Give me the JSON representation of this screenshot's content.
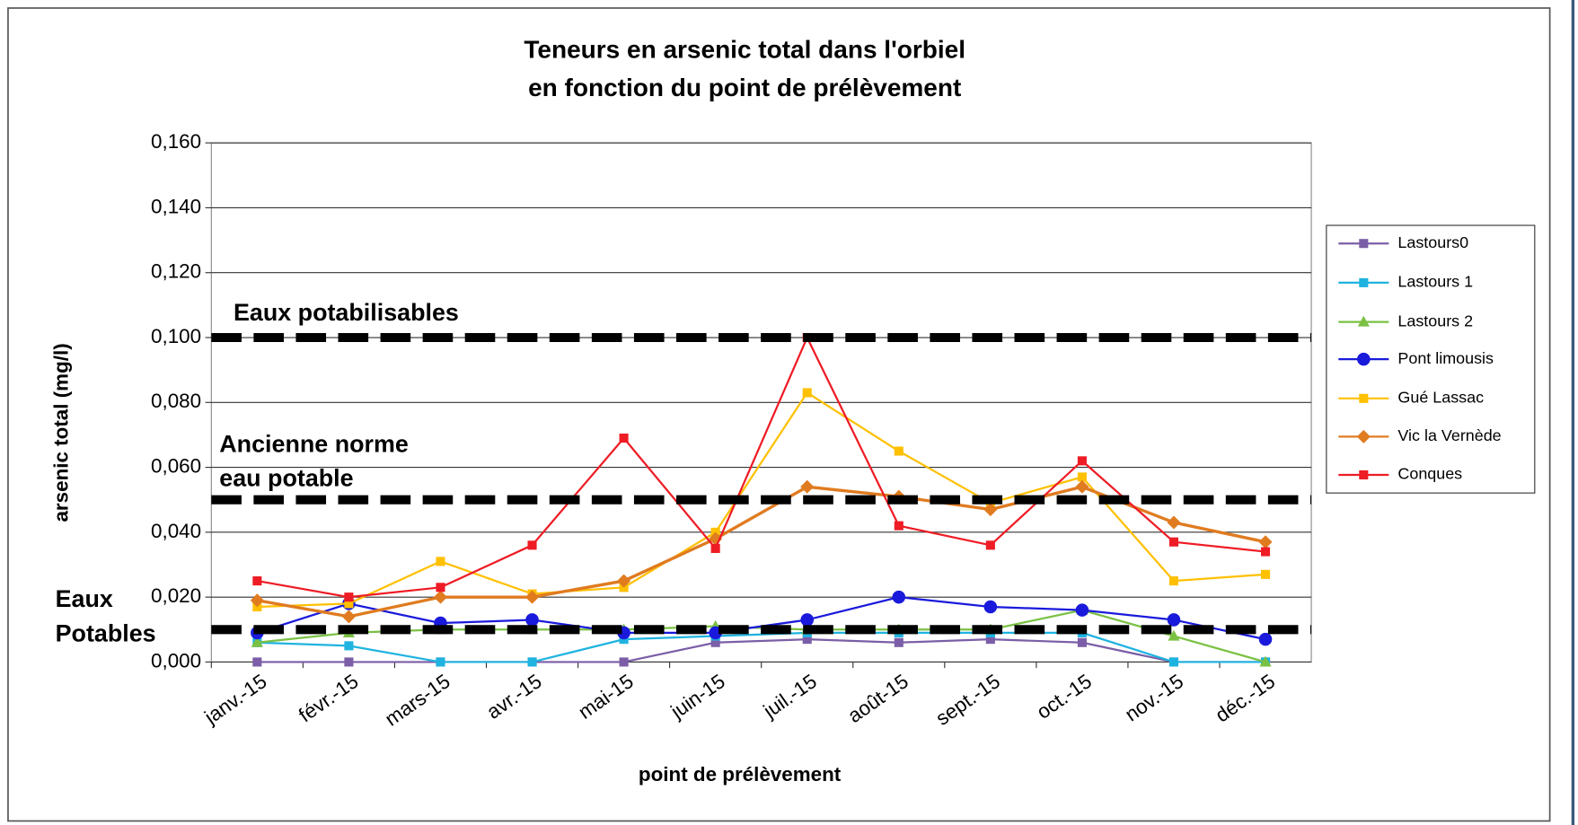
{
  "chart_data": {
    "type": "line",
    "title": [
      "Teneurs en arsenic total dans l'orbiel",
      "en fonction du point de prélèvement"
    ],
    "x_label": "point de prélèvement",
    "y_label": "arsenic total (mg/l)",
    "categories": [
      "janv.-15",
      "févr.-15",
      "mars-15",
      "avr.-15",
      "mai-15",
      "juin-15",
      "juil.-15",
      "août-15",
      "sept.-15",
      "oct.-15",
      "nov.-15",
      "déc.-15"
    ],
    "series": [
      {
        "name": "Lastours0",
        "color": "#7b5ea7",
        "marker": "square",
        "values": [
          0,
          0,
          0,
          0,
          0,
          0.006,
          0.007,
          0.006,
          0.007,
          0.006,
          0,
          0
        ]
      },
      {
        "name": "Lastours 1",
        "color": "#1fb3e0",
        "marker": "square",
        "values": [
          0.006,
          0.005,
          0,
          0,
          0.007,
          0.008,
          0.009,
          0.009,
          0.009,
          0.009,
          0,
          0
        ]
      },
      {
        "name": "Lastours 2",
        "color": "#7ac143",
        "marker": "triangle",
        "values": [
          0.006,
          0.009,
          0.01,
          0.01,
          0.01,
          0.011,
          0.01,
          0.01,
          0.01,
          0.016,
          0.008,
          0
        ]
      },
      {
        "name": "Pont limousis",
        "color": "#1a1adc",
        "marker": "circle",
        "values": [
          0.009,
          0.018,
          0.012,
          0.013,
          0.009,
          0.009,
          0.013,
          0.02,
          0.017,
          0.016,
          0.013,
          0.007
        ]
      },
      {
        "name": "Gué Lassac",
        "color": "#ffc000",
        "marker": "square",
        "values": [
          0.017,
          0.018,
          0.031,
          0.021,
          0.023,
          0.04,
          0.083,
          0.065,
          0.049,
          0.057,
          0.025,
          0.027
        ]
      },
      {
        "name": "Vic la Vernède",
        "color": "#e07b20",
        "marker": "diamond",
        "values": [
          0.019,
          0.014,
          0.02,
          0.02,
          0.025,
          0.038,
          0.054,
          0.051,
          0.047,
          0.054,
          0.043,
          0.037
        ]
      },
      {
        "name": "Conques",
        "color": "#ee1c25",
        "marker": "square",
        "values": [
          0.025,
          0.02,
          0.023,
          0.036,
          0.069,
          0.035,
          0.1,
          0.042,
          0.036,
          0.062,
          0.037,
          0.034
        ]
      }
    ],
    "ylim": [
      0,
      0.16
    ],
    "yticks": [
      {
        "value": 0,
        "label": "0,000"
      },
      {
        "value": 0.02,
        "label": "0,020"
      },
      {
        "value": 0.04,
        "label": "0,040"
      },
      {
        "value": 0.06,
        "label": "0,060"
      },
      {
        "value": 0.08,
        "label": "0,080"
      },
      {
        "value": 0.1,
        "label": "0,100"
      },
      {
        "value": 0.12,
        "label": "0,120"
      },
      {
        "value": 0.14,
        "label": "0,140"
      },
      {
        "value": 0.16,
        "label": "0,160"
      }
    ],
    "grid": true,
    "legend": "right",
    "reference_lines": [
      {
        "value": 0.1,
        "label": [
          "Eaux potabilisables"
        ]
      },
      {
        "value": 0.05,
        "label": [
          "Ancienne norme",
          "eau potable"
        ]
      },
      {
        "value": 0.01,
        "label": [
          "Eaux",
          "Potables"
        ]
      }
    ]
  }
}
